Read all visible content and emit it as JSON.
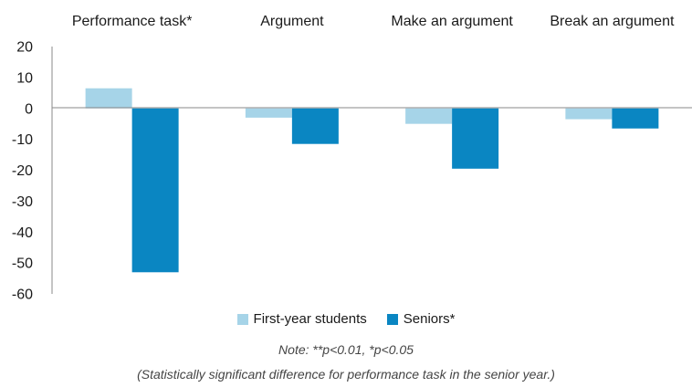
{
  "chart_data": {
    "type": "bar",
    "categories": [
      "Performance task*",
      "Argument",
      "Make an argument",
      "Break an argument"
    ],
    "series": [
      {
        "name": "First-year students",
        "values": [
          6.5,
          -3,
          -5,
          -3.5
        ],
        "color": "#a6d4e8"
      },
      {
        "name": "Seniors*",
        "values": [
          -53,
          -11.5,
          -19.5,
          -6.5
        ],
        "color": "#0a86c2"
      }
    ],
    "yticks": [
      20,
      10,
      0,
      -10,
      -20,
      -30,
      -40,
      -50,
      -60
    ],
    "ylim": [
      -60,
      20
    ],
    "grid": false,
    "legend_position": "bottom-center"
  },
  "notes": {
    "line1": "Note: **p<0.01, *p<0.05",
    "line2": "(Statistically significant difference for performance task in the senior year.)"
  }
}
